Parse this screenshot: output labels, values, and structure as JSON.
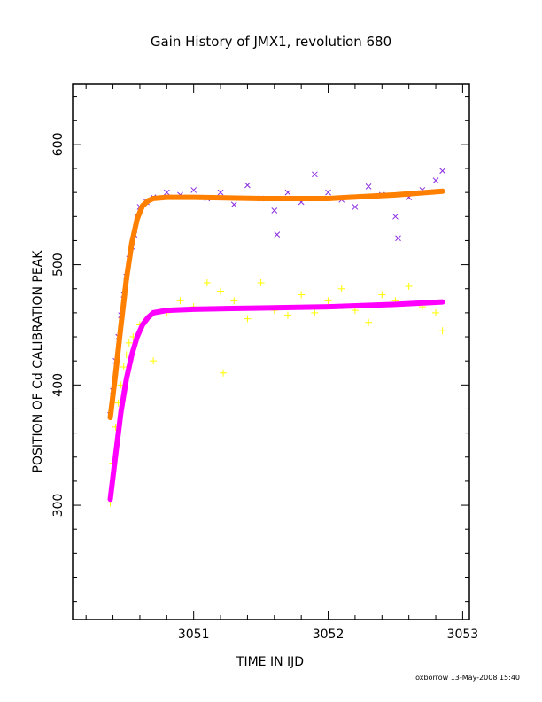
{
  "chart_data": {
    "type": "scatter",
    "title": "Gain History of JMX1, revolution 680",
    "xlabel": "TIME IN IJD",
    "ylabel": "POSITION OF Cd CALIBRATION PEAK",
    "xlim": [
      3050.1,
      3053.05
    ],
    "ylim": [
      205,
      650
    ],
    "xticks": [
      "3051",
      "3052",
      "3053"
    ],
    "yticks": [
      "300",
      "400",
      "500",
      "600"
    ],
    "grid": false,
    "series": [
      {
        "marker": "x",
        "color": "#8a2be2",
        "x": [
          3050.38,
          3050.4,
          3050.42,
          3050.44,
          3050.46,
          3050.48,
          3050.5,
          3050.52,
          3050.54,
          3050.56,
          3050.58,
          3050.6,
          3050.65,
          3050.7,
          3050.8,
          3050.9,
          3051.0,
          3051.1,
          3051.2,
          3051.3,
          3051.4,
          3051.5,
          3051.6,
          3051.62,
          3051.7,
          3051.8,
          3051.9,
          3052.0,
          3052.1,
          3052.2,
          3052.3,
          3052.4,
          3052.5,
          3052.52,
          3052.6,
          3052.7,
          3052.8,
          3052.85
        ],
        "values": [
          375,
          395,
          420,
          440,
          458,
          475,
          490,
          505,
          515,
          525,
          540,
          548,
          552,
          556,
          560,
          558,
          562,
          555,
          560,
          550,
          566,
          555,
          545,
          525,
          560,
          552,
          575,
          560,
          554,
          548,
          565,
          558,
          540,
          522,
          556,
          562,
          570,
          578
        ]
      },
      {
        "marker": "+",
        "color": "#ffff00",
        "x": [
          3050.38,
          3050.4,
          3050.42,
          3050.44,
          3050.46,
          3050.48,
          3050.5,
          3050.52,
          3050.55,
          3050.6,
          3050.65,
          3050.7,
          3050.8,
          3050.9,
          3051.0,
          3051.1,
          3051.2,
          3051.22,
          3051.3,
          3051.4,
          3051.5,
          3051.6,
          3051.7,
          3051.8,
          3051.9,
          3052.0,
          3052.1,
          3052.2,
          3052.3,
          3052.4,
          3052.5,
          3052.6,
          3052.7,
          3052.8,
          3052.85
        ],
        "values": [
          302,
          335,
          365,
          385,
          400,
          415,
          425,
          435,
          440,
          450,
          455,
          420,
          460,
          470,
          465,
          485,
          478,
          410,
          470,
          455,
          485,
          462,
          458,
          475,
          460,
          470,
          480,
          462,
          452,
          475,
          470,
          482,
          465,
          460,
          445
        ]
      },
      {
        "marker": "fit",
        "color": "#ff8000",
        "x": [
          3050.38,
          3050.42,
          3050.46,
          3050.5,
          3050.54,
          3050.58,
          3050.62,
          3050.66,
          3050.7,
          3050.8,
          3051.0,
          3051.5,
          3052.0,
          3052.5,
          3052.85
        ],
        "values": [
          373,
          410,
          450,
          488,
          518,
          538,
          549,
          553,
          555,
          556,
          556,
          555,
          555,
          558,
          561
        ]
      },
      {
        "marker": "fit",
        "color": "#ff00ff",
        "x": [
          3050.38,
          3050.42,
          3050.46,
          3050.5,
          3050.54,
          3050.58,
          3050.62,
          3050.66,
          3050.7,
          3050.8,
          3051.0,
          3051.5,
          3052.0,
          3052.5,
          3052.85
        ],
        "values": [
          305,
          342,
          378,
          405,
          425,
          440,
          450,
          456,
          460,
          462,
          463,
          464,
          465,
          467,
          469
        ]
      }
    ]
  },
  "footer": "oxborrow 13-May-2008 15:40"
}
